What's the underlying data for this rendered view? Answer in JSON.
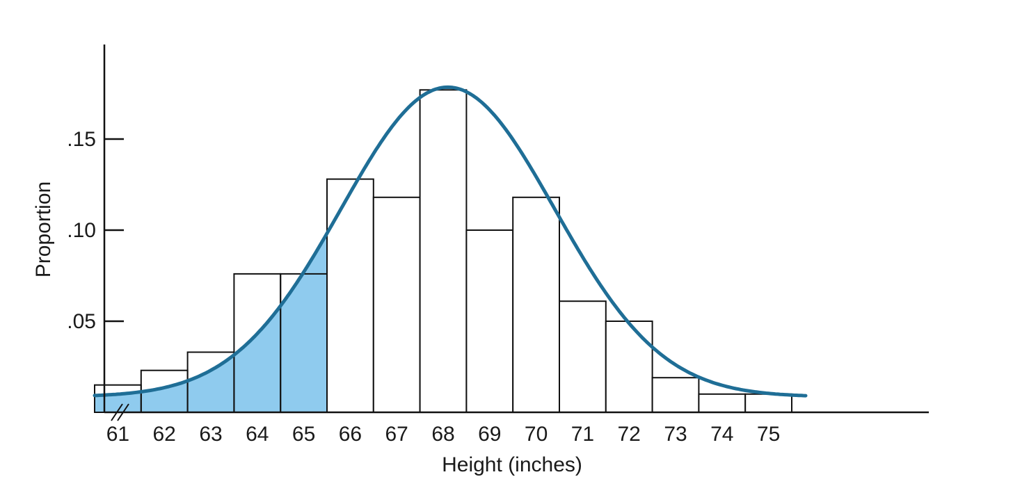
{
  "chart_data": {
    "type": "bar",
    "title": "",
    "xlabel": "Height (inches)",
    "ylabel": "Proportion",
    "ylim": [
      0,
      0.18
    ],
    "xlim": [
      59.5,
      76.5
    ],
    "grid": false,
    "y_ticks": [
      {
        "value": 0.15,
        "label": ".15"
      },
      {
        "value": 0.1,
        "label": ".10"
      },
      {
        "value": 0.05,
        "label": ".05"
      }
    ],
    "x_ticks": [
      {
        "value": 61,
        "label": "61"
      },
      {
        "value": 62,
        "label": "62"
      },
      {
        "value": 63,
        "label": "63"
      },
      {
        "value": 64,
        "label": "64"
      },
      {
        "value": 65,
        "label": "65"
      },
      {
        "value": 66,
        "label": "66"
      },
      {
        "value": 67,
        "label": "67"
      },
      {
        "value": 68,
        "label": "68"
      },
      {
        "value": 69,
        "label": "69"
      },
      {
        "value": 70,
        "label": "70"
      },
      {
        "value": 71,
        "label": "71"
      },
      {
        "value": 72,
        "label": "72"
      },
      {
        "value": 73,
        "label": "73"
      },
      {
        "value": 74,
        "label": "74"
      },
      {
        "value": 75,
        "label": "75"
      }
    ],
    "categories": [
      "61",
      "62",
      "63",
      "64",
      "65",
      "66",
      "67",
      "68",
      "69",
      "70",
      "71",
      "72",
      "73",
      "74",
      "75"
    ],
    "values": [
      0.015,
      0.023,
      0.033,
      0.076,
      0.076,
      0.128,
      0.118,
      0.177,
      0.1,
      0.118,
      0.061,
      0.05,
      0.019,
      0.01,
      0.01
    ],
    "curve": {
      "type": "normal",
      "mean": 68.1,
      "sd": 2.3,
      "x_range": [
        60.5,
        75.8
      ],
      "color": "#1f6e96"
    },
    "shaded_region": {
      "x_from": 60.5,
      "x_to": 65.5,
      "color": "#8fcbee"
    },
    "axis_break": true,
    "colors": {
      "bar_fill": "#ffffff",
      "bar_stroke": "#111111",
      "axis": "#111111",
      "curve": "#1f6e96",
      "shade": "#8fcbee"
    }
  }
}
